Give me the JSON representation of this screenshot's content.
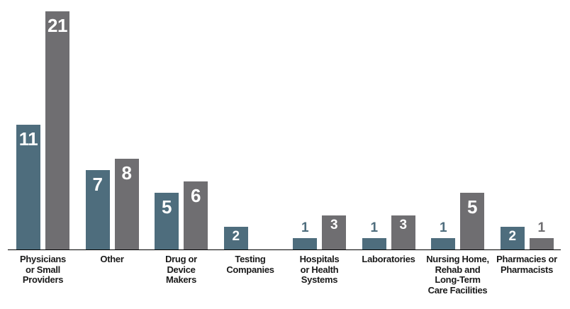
{
  "chart_data": {
    "type": "bar",
    "categories": [
      "Physicians\nor Small\nProviders",
      "Other",
      "Drug or\nDevice\nMakers",
      "Testing\nCompanies",
      "Hospitals\nor Health\nSystems",
      "Laboratories",
      "Nursing Home,\nRehab and\nLong-Term\nCare Facilities",
      "Pharmacies or\nPharmacists"
    ],
    "series": [
      {
        "name": "teal",
        "color": "#4e6d7d",
        "values": [
          11,
          7,
          5,
          2,
          1,
          1,
          1,
          2
        ]
      },
      {
        "name": "gray",
        "color": "#6f6e71",
        "values": [
          21,
          8,
          6,
          null,
          3,
          3,
          5,
          1
        ]
      }
    ],
    "title": "",
    "xlabel": "",
    "ylabel": "",
    "legend": "none",
    "grid": false,
    "y_axis_shown": false,
    "x_axis_line_shown": true,
    "value_labels": {
      "inside_text_color": "#ffffff",
      "placed_above_when_value_is": 1,
      "above_label_color": "matches bar color"
    }
  },
  "colors": {
    "teal_bar": "#4e6d7d",
    "gray_bar": "#6f6e71",
    "axis_line": "#000000",
    "category_text": "#1a1a1a",
    "background": "#ffffff"
  }
}
